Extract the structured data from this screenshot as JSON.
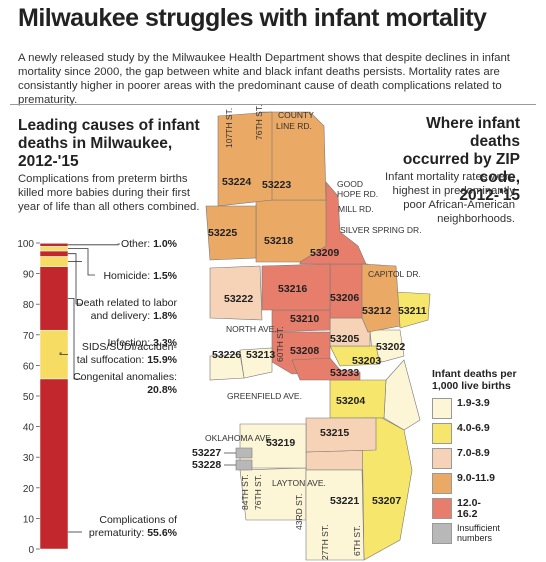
{
  "headline": "Milwaukee struggles with infant mortality",
  "intro": "A newly released study by the Milwaukee Health Department shows that despite declines in infant mortality since 2000, the gap between white and black infant deaths persists. Mortality rates are consistantly higher in poorer areas with the predominant cause of death complications related to prematurity.",
  "left_panel": {
    "heading_line1": "Leading causes of infant",
    "heading_line2": "deaths in Milwaukee,",
    "heading_line3": "2012-'15",
    "subtext": "Complications from preterm births killed more babies during their first year of life than all others combined."
  },
  "right_panel": {
    "heading_line1": "Where infant deaths",
    "heading_line2": "occurred by ZIP code,",
    "heading_line3": "2012-'15",
    "subtext": "Infant mortality rates were highest in predominantly poor African-American neighborhoods."
  },
  "chart_data": [
    {
      "type": "bar",
      "stacked": true,
      "title": "Leading causes of infant deaths in Milwaukee, 2012-'15",
      "unit": "%",
      "ylim": [
        0,
        100
      ],
      "yticks": [
        0,
        10,
        20,
        30,
        40,
        50,
        60,
        70,
        80,
        90,
        100
      ],
      "segments": [
        {
          "label": "Complications of prematurity",
          "value": 55.6,
          "display": "55.6%",
          "color": "#c1272d"
        },
        {
          "label": "SIDS/SUDI/accidental suffocation",
          "value": 15.9,
          "display": "15.9%",
          "color": "#f6dc63"
        },
        {
          "label": "Congenital anomalies",
          "value": 20.8,
          "display": "20.8%",
          "color": "#c1272d"
        },
        {
          "label": "Infection",
          "value": 3.3,
          "display": "3.3%",
          "color": "#f6dc63"
        },
        {
          "label": "Death related to labor and delivery",
          "value": 1.8,
          "display": "1.8%",
          "color": "#c1272d"
        },
        {
          "label": "Homicide",
          "value": 1.5,
          "display": "1.5%",
          "color": "#f6dc63"
        },
        {
          "label": "Other",
          "value": 1.0,
          "display": "1.0%",
          "color": "#c1272d"
        }
      ]
    },
    {
      "type": "heatmap",
      "title": "Where infant deaths occurred by ZIP code, 2012-'15",
      "legend_title": "Infant deaths per 1,000 live births",
      "bins": [
        {
          "label": "1.9-3.9",
          "range": [
            1.9,
            3.9
          ],
          "color": "#fcf6d7"
        },
        {
          "label": "4.0-6.9",
          "range": [
            4.0,
            6.9
          ],
          "color": "#f7e66c"
        },
        {
          "label": "7.0-8.9",
          "range": [
            7.0,
            8.9
          ],
          "color": "#f6d2b6"
        },
        {
          "label": "9.0-11.9",
          "range": [
            9.0,
            11.9
          ],
          "color": "#eba966"
        },
        {
          "label": "12.0-16.2",
          "range": [
            12.0,
            16.2
          ],
          "color": "#e77e6c"
        }
      ],
      "insufficient": {
        "label": "Insufficient numbers",
        "color": "#b8b8b8"
      },
      "zips": [
        {
          "zip": "53224",
          "bin": "9.0-11.9"
        },
        {
          "zip": "53223",
          "bin": "9.0-11.9"
        },
        {
          "zip": "53225",
          "bin": "9.0-11.9"
        },
        {
          "zip": "53218",
          "bin": "9.0-11.9"
        },
        {
          "zip": "53209",
          "bin": "12.0-16.2"
        },
        {
          "zip": "53222",
          "bin": "7.0-8.9"
        },
        {
          "zip": "53216",
          "bin": "12.0-16.2"
        },
        {
          "zip": "53206",
          "bin": "12.0-16.2"
        },
        {
          "zip": "53212",
          "bin": "9.0-11.9"
        },
        {
          "zip": "53211",
          "bin": "4.0-6.9"
        },
        {
          "zip": "53210",
          "bin": "12.0-16.2"
        },
        {
          "zip": "53205",
          "bin": "7.0-8.9"
        },
        {
          "zip": "53202",
          "bin": "1.9-3.9"
        },
        {
          "zip": "53226",
          "bin": "1.9-3.9"
        },
        {
          "zip": "53213",
          "bin": "1.9-3.9"
        },
        {
          "zip": "53208",
          "bin": "12.0-16.2"
        },
        {
          "zip": "53203",
          "bin": "4.0-6.9"
        },
        {
          "zip": "53233",
          "bin": "12.0-16.2"
        },
        {
          "zip": "53204",
          "bin": "4.0-6.9"
        },
        {
          "zip": "53215",
          "bin": "7.0-8.9"
        },
        {
          "zip": "53219",
          "bin": "1.9-3.9"
        },
        {
          "zip": "53227",
          "bin": "insufficient"
        },
        {
          "zip": "53228",
          "bin": "insufficient"
        },
        {
          "zip": "53221",
          "bin": "1.9-3.9"
        },
        {
          "zip": "53207",
          "bin": "4.0-6.9"
        }
      ]
    }
  ],
  "streets": {
    "s107": "107TH ST.",
    "s76": "76TH ST.",
    "county_line": "COUNTY\nLINE RD.",
    "good_hope": "GOOD\nHOPE RD.",
    "mill": "MILL RD.",
    "silver_spring": "SILVER SPRING DR.",
    "capitol": "CAPITOL DR.",
    "north": "NORTH AVE.",
    "s60": "60TH ST.",
    "greenfield": "GREENFIELD AVE.",
    "oklahoma": "OKLAHOMA AVE.",
    "s84": "84TH ST.",
    "s76b": "76TH ST.",
    "layton": "LAYTON AVE.",
    "s43": "43RD ST.",
    "s27": "27TH ST.",
    "s6": "6TH ST."
  },
  "colors": {
    "red": "#c1272d",
    "yellow": "#f6dc63"
  }
}
